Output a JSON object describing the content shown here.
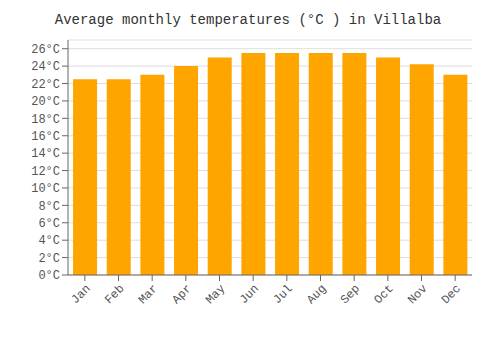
{
  "chart_data": {
    "type": "bar",
    "title": "Average monthly temperatures (°C ) in Villalba",
    "categories": [
      "Jan",
      "Feb",
      "Mar",
      "Apr",
      "May",
      "Jun",
      "Jul",
      "Aug",
      "Sep",
      "Oct",
      "Nov",
      "Dec"
    ],
    "values": [
      22.5,
      22.5,
      23.0,
      24.0,
      25.0,
      25.5,
      25.5,
      25.5,
      25.5,
      25.0,
      24.2,
      23.0
    ],
    "color": "#FFA500",
    "ylim": [
      0,
      27
    ],
    "yticks": [
      {
        "value": 0,
        "label": "0°C"
      },
      {
        "value": 2,
        "label": "2°C"
      },
      {
        "value": 4,
        "label": "4°C"
      },
      {
        "value": 6,
        "label": "6°C"
      },
      {
        "value": 8,
        "label": "8°C"
      },
      {
        "value": 10,
        "label": "10°C"
      },
      {
        "value": 12,
        "label": "12°C"
      },
      {
        "value": 14,
        "label": "14°C"
      },
      {
        "value": 16,
        "label": "16°C"
      },
      {
        "value": 18,
        "label": "18°C"
      },
      {
        "value": 20,
        "label": "20°C"
      },
      {
        "value": 22,
        "label": "22°C"
      },
      {
        "value": 24,
        "label": "24°C"
      },
      {
        "value": 26,
        "label": "26°C"
      }
    ],
    "grid": true
  }
}
